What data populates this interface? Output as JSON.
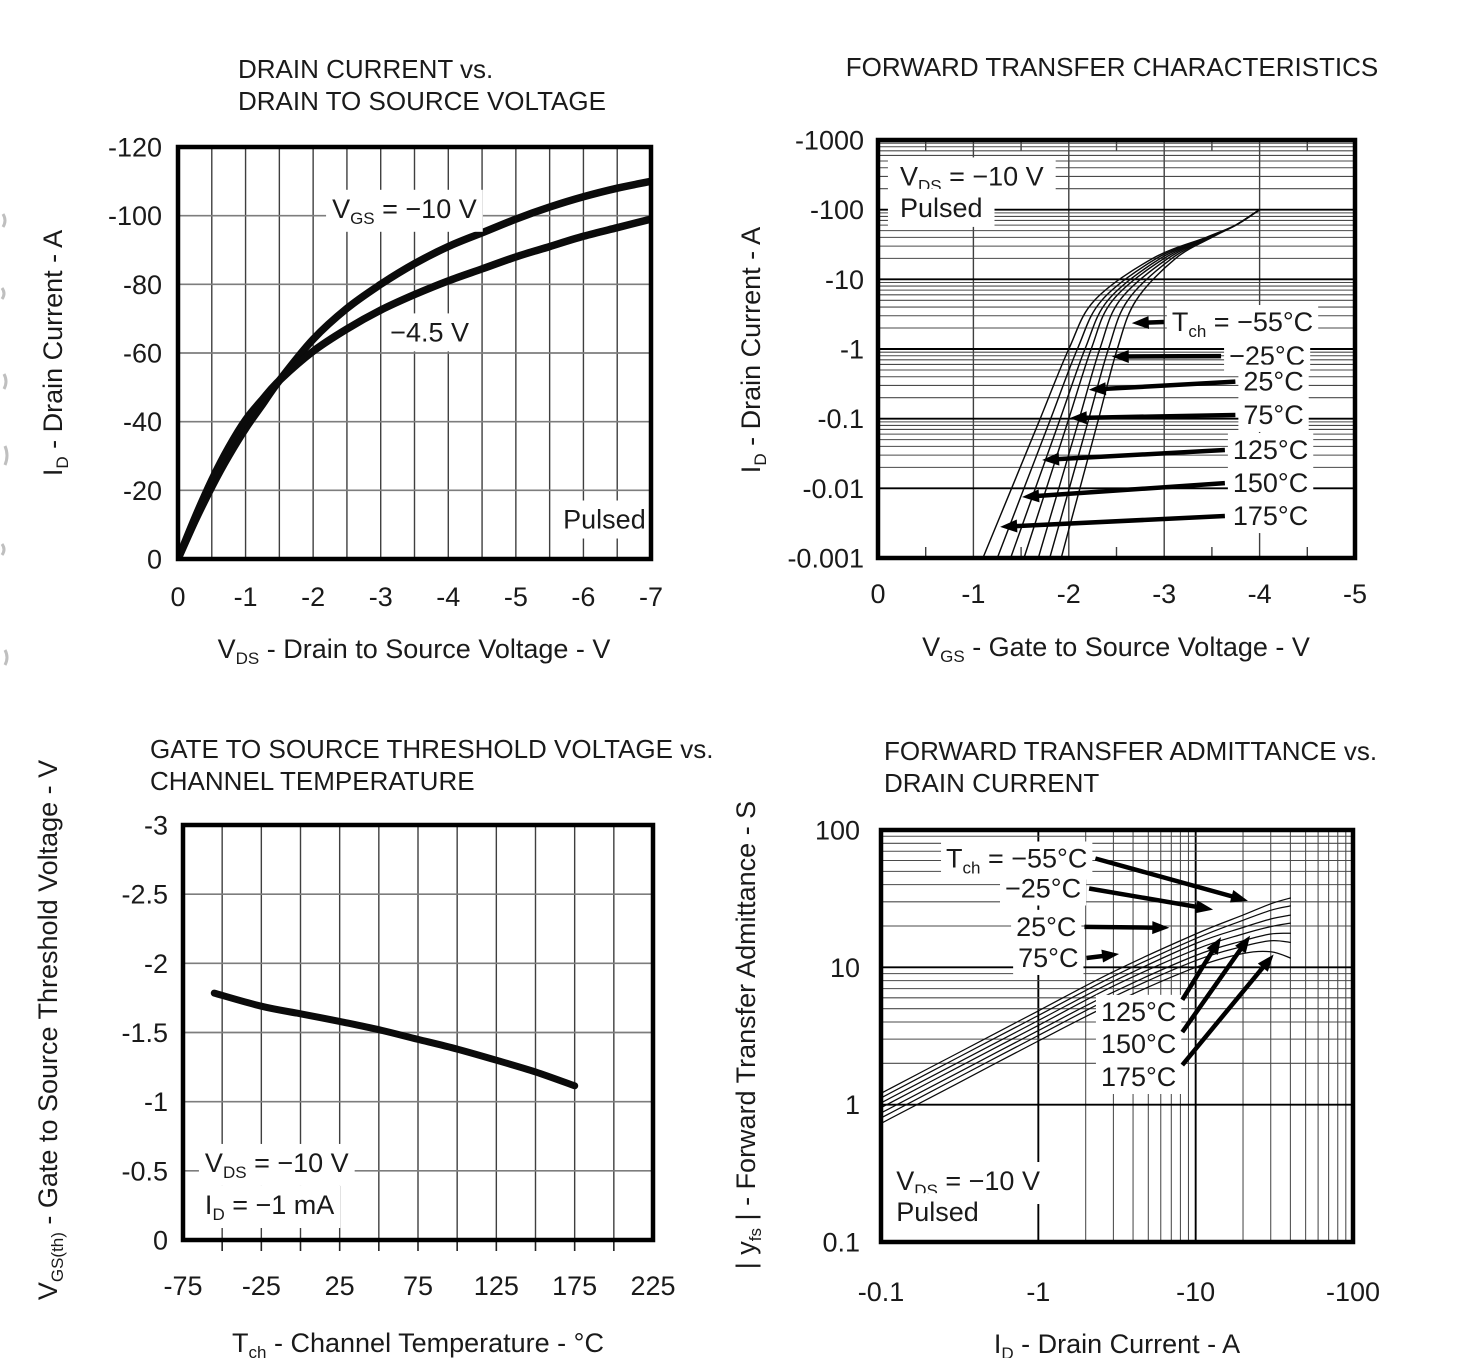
{
  "page": {
    "background": "#ffffff",
    "ink": "#111111",
    "grid_minor_color": "#4a4a4a",
    "grid_light_color": "#7d7d7d",
    "grid_major_color": "#000000"
  },
  "chart_data": [
    {
      "type": "line",
      "title_lines": [
        "DRAIN CURRENT vs.",
        "DRAIN TO SOURCE VOLTAGE"
      ],
      "xlabel": "V~DS~ - Drain to Source Voltage - V",
      "ylabel": "I~D~ - Drain Current - A",
      "x_scale": "linear",
      "xlim": [
        0,
        -7
      ],
      "x_ticks": [
        0,
        -1,
        -2,
        -3,
        -4,
        -5,
        -6,
        -7
      ],
      "x_minor_step": 0.5,
      "y_scale": "linear",
      "ylim": [
        0,
        -120
      ],
      "y_ticks": [
        -120,
        -100,
        -80,
        -60,
        -40,
        -20,
        0
      ],
      "grid": true,
      "series": [
        {
          "name": "V~GS~ = −10 V",
          "x": [
            0,
            -0.25,
            -0.5,
            -0.75,
            -1,
            -1.25,
            -1.5,
            -2,
            -2.5,
            -3,
            -3.5,
            -4,
            -4.5,
            -5,
            -5.5,
            -6,
            -6.5,
            -7
          ],
          "y": [
            0,
            -11,
            -21,
            -30,
            -38,
            -45,
            -52,
            -64,
            -73,
            -80,
            -86,
            -91,
            -95,
            -99,
            -102.5,
            -105.5,
            -108,
            -110
          ]
        },
        {
          "name": "V~GS~ = −4.5 V",
          "x": [
            0,
            -0.25,
            -0.5,
            -0.75,
            -1,
            -1.25,
            -1.5,
            -2,
            -2.5,
            -3,
            -3.5,
            -4,
            -4.5,
            -5,
            -5.5,
            -6,
            -6.5,
            -7
          ],
          "y": [
            0,
            -12,
            -23,
            -32.5,
            -40.5,
            -46.5,
            -52,
            -60.5,
            -67,
            -72.5,
            -77,
            -81,
            -84.5,
            -88,
            -91,
            -94,
            -96.5,
            -99
          ]
        }
      ],
      "annotations": [
        {
          "text": "V~GS~ = −10 V",
          "x": -2.28,
          "y": -102
        },
        {
          "text": "−4.5 V",
          "x": -3.14,
          "y": -66
        },
        {
          "text": "Pulsed",
          "x": -5.7,
          "y": -11.5
        }
      ]
    },
    {
      "type": "line",
      "title_lines": [
        "FORWARD TRANSFER CHARACTERISTICS"
      ],
      "xlabel": "V~GS~ - Gate to Source Voltage - V",
      "ylabel": "I~D~ - Drain Current - A",
      "x_scale": "linear",
      "xlim": [
        0,
        -5
      ],
      "x_ticks": [
        0,
        -1,
        -2,
        -3,
        -4,
        -5
      ],
      "x_minor_step": 0.5,
      "y_scale": "log",
      "ylim": [
        -0.001,
        -1000
      ],
      "y_ticks": [
        -1000,
        -100,
        -10,
        -1,
        -0.1,
        -0.01,
        -0.001
      ],
      "grid": true,
      "series": [
        {
          "name": "−55°C",
          "x": [
            -1.92,
            -2.116,
            -2.312,
            -2.508,
            -2.705,
            -3.12,
            -3.5,
            -3.75,
            -4.0
          ],
          "y": [
            -0.001,
            -0.01,
            -0.1,
            -1,
            -5,
            -20,
            -40,
            -60,
            -100
          ]
        },
        {
          "name": "−25°C",
          "x": [
            -1.8,
            -2.005,
            -2.21,
            -2.415,
            -2.618,
            -3.08,
            -3.49,
            -3.75,
            -4.0
          ],
          "y": [
            -0.001,
            -0.01,
            -0.1,
            -1,
            -5,
            -20,
            -40,
            -60,
            -100
          ]
        },
        {
          "name": "25°C",
          "x": [
            -1.68,
            -1.895,
            -2.11,
            -2.325,
            -2.535,
            -3.04,
            -3.48,
            -3.75,
            -4.0
          ],
          "y": [
            -0.001,
            -0.01,
            -0.1,
            -1,
            -5,
            -20,
            -40,
            -60,
            -100
          ]
        },
        {
          "name": "75°C",
          "x": [
            -1.53,
            -1.765,
            -2.0,
            -2.235,
            -2.46,
            -3.0,
            -3.47,
            -3.75,
            -4.0
          ],
          "y": [
            -0.001,
            -0.01,
            -0.1,
            -1,
            -5,
            -20,
            -40,
            -60,
            -100
          ]
        },
        {
          "name": "125°C",
          "x": [
            -1.39,
            -1.65,
            -1.91,
            -2.17,
            -2.41,
            -2.96,
            -3.46,
            -3.75,
            -4.0
          ],
          "y": [
            -0.001,
            -0.01,
            -0.1,
            -1,
            -5,
            -20,
            -40,
            -60,
            -100
          ]
        },
        {
          "name": "150°C",
          "x": [
            -1.25,
            -1.53,
            -1.81,
            -2.09,
            -2.346,
            -2.92,
            -3.45,
            -3.75,
            -4.0
          ],
          "y": [
            -0.001,
            -0.01,
            -0.1,
            -1,
            -5,
            -20,
            -40,
            -60,
            -100
          ]
        },
        {
          "name": "175°C",
          "x": [
            -1.1,
            -1.4,
            -1.7,
            -2.0,
            -2.27,
            -2.88,
            -3.44,
            -3.75,
            -4.0
          ],
          "y": [
            -0.001,
            -0.01,
            -0.1,
            -1,
            -5,
            -20,
            -40,
            -60,
            -100
          ]
        }
      ],
      "legend": [
        {
          "label": "T~ch~ = −55°C",
          "lx": -3.08,
          "ly": -2.44,
          "tx": -2.66,
          "ty": -2.35,
          "side": "left"
        },
        {
          "label": "−25°C",
          "lx": -3.68,
          "ly": -0.79,
          "tx": -2.45,
          "ty": -0.78,
          "side": "left"
        },
        {
          "label": "25°C",
          "lx": -3.83,
          "ly": -0.34,
          "tx": -2.21,
          "ty": -0.26,
          "side": "left"
        },
        {
          "label": "75°C",
          "lx": -3.83,
          "ly": -0.113,
          "tx": -2.01,
          "ty": -0.102,
          "side": "left"
        },
        {
          "label": "125°C",
          "lx": -3.72,
          "ly": -0.0355,
          "tx": -1.72,
          "ty": -0.0255,
          "side": "left"
        },
        {
          "label": "150°C",
          "lx": -3.72,
          "ly": -0.0119,
          "tx": -1.51,
          "ty": -0.0075,
          "side": "left"
        },
        {
          "label": "175°C",
          "lx": -3.72,
          "ly": -0.004,
          "tx": -1.28,
          "ty": -0.0028,
          "side": "left"
        }
      ],
      "annotations": [
        {
          "text": "V~DS~ = −10 V",
          "x": -0.23,
          "y": -300
        },
        {
          "text": "Pulsed",
          "x": -0.23,
          "y": -106
        }
      ]
    },
    {
      "type": "line",
      "title_lines": [
        "GATE TO SOURCE THRESHOLD VOLTAGE vs.",
        "CHANNEL TEMPERATURE"
      ],
      "xlabel": "T~ch~ - Channel Temperature - °C",
      "ylabel": "V~GS(th)~ - Gate to Source Threshold Voltage - V",
      "x_scale": "linear",
      "xlim": [
        -75,
        225
      ],
      "x_ticks": [
        -75,
        -25,
        25,
        75,
        125,
        175,
        225
      ],
      "x_minor_step": 25,
      "y_scale": "linear",
      "ylim": [
        0,
        -3
      ],
      "y_ticks": [
        -3,
        -2.5,
        -2,
        -1.5,
        -1,
        -0.5,
        0
      ],
      "grid": true,
      "series": [
        {
          "name": "V~GS(th)~",
          "x": [
            -55,
            -25,
            0,
            25,
            50,
            75,
            100,
            125,
            150,
            175
          ],
          "y": [
            -1.785,
            -1.69,
            -1.635,
            -1.58,
            -1.52,
            -1.45,
            -1.38,
            -1.3,
            -1.215,
            -1.115
          ]
        }
      ],
      "annotations": [
        {
          "text": "V~DS~ = −10 V",
          "x": -61,
          "y": -0.557
        },
        {
          "text": "I~D~ = −1 mA",
          "x": -61,
          "y": -0.253
        }
      ]
    },
    {
      "type": "line",
      "title_lines": [
        "FORWARD TRANSFER ADMITTANCE vs.",
        "DRAIN CURRENT"
      ],
      "xlabel": "I~D~ - Drain Current - A",
      "ylabel": "| y~fs~ | - Forward Transfer Admittance - S",
      "x_scale": "log",
      "xlim": [
        -0.1,
        -100
      ],
      "x_ticks": [
        -0.1,
        -1,
        -10,
        -100
      ],
      "y_scale": "log",
      "ylim": [
        0.1,
        100
      ],
      "y_ticks": [
        100,
        10,
        1,
        0.1
      ],
      "grid": true,
      "series": [
        {
          "name": "−55°C",
          "x": [
            -0.1,
            -0.3,
            -1,
            -3,
            -10,
            -20,
            -30,
            -40
          ],
          "y": [
            1.21,
            2.34,
            4.82,
            9.3,
            17.5,
            24,
            29,
            32
          ]
        },
        {
          "name": "−25°C",
          "x": [
            -0.1,
            -0.3,
            -1,
            -3,
            -10,
            -20,
            -30,
            -40
          ],
          "y": [
            1.12,
            2.17,
            4.46,
            8.6,
            16.2,
            22,
            26,
            28
          ]
        },
        {
          "name": "25°C",
          "x": [
            -0.1,
            -0.3,
            -1,
            -3,
            -10,
            -20,
            -30,
            -40
          ],
          "y": [
            1.03,
            1.99,
            4.1,
            7.9,
            14.9,
            19.5,
            22.5,
            24
          ]
        },
        {
          "name": "75°C",
          "x": [
            -0.1,
            -0.3,
            -1,
            -3,
            -10,
            -20,
            -30,
            -40
          ],
          "y": [
            0.95,
            1.84,
            3.78,
            7.3,
            13.5,
            17.5,
            19.8,
            21
          ]
        },
        {
          "name": "125°C",
          "x": [
            -0.1,
            -0.3,
            -1,
            -3,
            -10,
            -20,
            -30,
            -40
          ],
          "y": [
            0.87,
            1.68,
            3.46,
            6.6,
            12.2,
            15.6,
            17.5,
            17.7
          ]
        },
        {
          "name": "150°C",
          "x": [
            -0.1,
            -0.3,
            -1,
            -3,
            -10,
            -20,
            -30,
            -40
          ],
          "y": [
            0.8,
            1.55,
            3.19,
            6.1,
            11.2,
            14.2,
            15.6,
            15.2
          ]
        },
        {
          "name": "175°C",
          "x": [
            -0.1,
            -0.3,
            -1,
            -3,
            -10,
            -20,
            -30,
            -40
          ],
          "y": [
            0.73,
            1.41,
            2.91,
            5.5,
            10.0,
            12.6,
            13.0,
            11.7
          ]
        }
      ],
      "legend": [
        {
          "label": "T~ch~ = −55°C",
          "lx": -0.259,
          "ly": 62,
          "tx": -21.5,
          "ty": 30.5,
          "side": "right"
        },
        {
          "label": "−25°C",
          "lx": -0.614,
          "ly": 37.5,
          "tx": -12.9,
          "ty": 26.3,
          "side": "right"
        },
        {
          "label": "25°C",
          "lx": -0.722,
          "ly": 19.7,
          "tx": -6.8,
          "ty": 19.4,
          "side": "right"
        },
        {
          "label": "75°C",
          "lx": -0.744,
          "ly": 11.7,
          "tx": -3.26,
          "ty": 12.5,
          "side": "right"
        },
        {
          "label": "125°C",
          "lx": -2.5,
          "ly": 4.74,
          "tx": -14.5,
          "ty": 16.6,
          "side": "right-up"
        },
        {
          "label": "150°C",
          "lx": -2.5,
          "ly": 2.76,
          "tx": -22.2,
          "ty": 17.0,
          "side": "right-up"
        },
        {
          "label": "175°C",
          "lx": -2.5,
          "ly": 1.59,
          "tx": -31.3,
          "ty": 12.4,
          "side": "right-up"
        }
      ],
      "annotations": [
        {
          "text": "V~DS~ = −10 V",
          "x": -0.125,
          "y": 0.278
        },
        {
          "text": "Pulsed",
          "x": -0.125,
          "y": 0.165
        }
      ]
    }
  ]
}
